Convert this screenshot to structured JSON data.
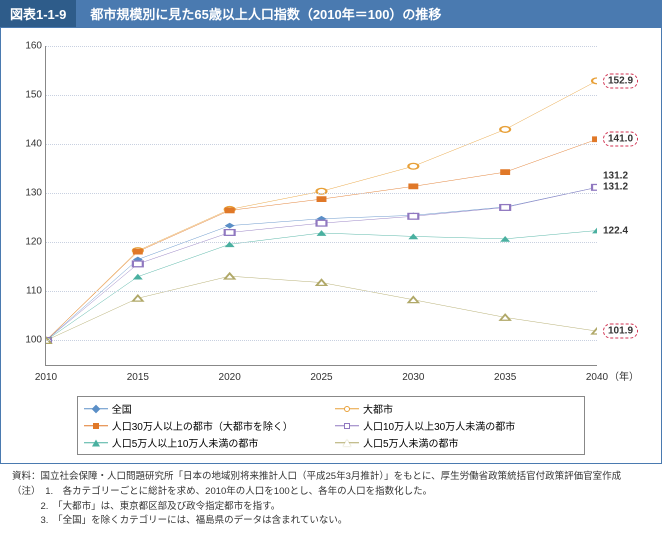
{
  "header": {
    "label": "図表1-1-9",
    "title": "都市規模別に見た65歳以上人口指数（2010年＝100）の推移"
  },
  "chart": {
    "type": "line",
    "ylim": [
      95,
      160
    ],
    "yticks": [
      100,
      110,
      120,
      130,
      140,
      150,
      160
    ],
    "xticks": [
      "2010",
      "2015",
      "2020",
      "2025",
      "2030",
      "2035",
      "2040"
    ],
    "x_unit": "（年）",
    "grid_color": "#c8d0e0",
    "background_color": "#ffffff",
    "label_fontsize": 10,
    "series": [
      {
        "name": "全国",
        "color": "#5b8fc7",
        "marker": "diamond-filled",
        "data": [
          100,
          116.5,
          123.4,
          124.8,
          125.5,
          127.2,
          131.2
        ],
        "end_label": "131.2",
        "circled": false
      },
      {
        "name": "大都市",
        "color": "#e8a038",
        "marker": "circle-open",
        "data": [
          100,
          118.3,
          126.7,
          130.4,
          135.5,
          143.0,
          152.9
        ],
        "end_label": "152.9",
        "circled": true
      },
      {
        "name": "人口30万人以上の都市（大都市を除く）",
        "color": "#e07828",
        "marker": "square-filled",
        "data": [
          100,
          118.1,
          126.5,
          128.8,
          131.4,
          134.3,
          141.0
        ],
        "end_label": "141.0",
        "circled": true
      },
      {
        "name": "人口10万人以上30万人未満の都市",
        "color": "#9078c0",
        "marker": "square-open",
        "data": [
          100,
          115.6,
          122.0,
          123.9,
          125.3,
          127.1,
          131.2
        ],
        "end_label": "131.2",
        "circled": false
      },
      {
        "name": "人口5万人以上10万人未満の都市",
        "color": "#4ab0a0",
        "marker": "triangle-filled",
        "data": [
          100,
          113.0,
          119.6,
          121.9,
          121.2,
          120.7,
          122.4
        ],
        "end_label": "122.4",
        "circled": false
      },
      {
        "name": "人口5万人未満の都市",
        "color": "#b0a868",
        "marker": "triangle-open",
        "data": [
          100,
          108.6,
          113.1,
          111.8,
          108.3,
          104.7,
          101.9
        ],
        "end_label": "101.9",
        "circled": true
      }
    ]
  },
  "legend": {
    "order": [
      0,
      1,
      2,
      3,
      4,
      5
    ]
  },
  "footer": {
    "source": "資料：国立社会保障・人口問題研究所「日本の地域別将来推計人口（平成25年3月推計）」をもとに、厚生労働省政策統括官付政策評価官室作成",
    "notes_label": "（注）",
    "notes": [
      "1.　各カテゴリーごとに総計を求め、2010年の人口を100とし、各年の人口を指数化した。",
      "2.　「大都市」は、東京都区部及び政令指定都市を指す。",
      "3.　「全国」を除くカテゴリーには、福島県のデータは含まれていない。"
    ]
  }
}
